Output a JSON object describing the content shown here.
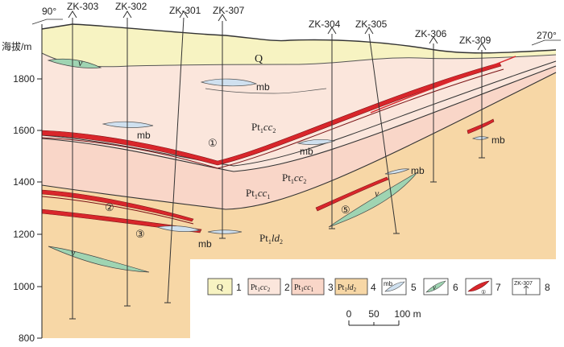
{
  "boreholes": [
    {
      "id": "ZK-303"
    },
    {
      "id": "ZK-302"
    },
    {
      "id": "ZK-301"
    },
    {
      "id": "ZK-307"
    },
    {
      "id": "ZK-304"
    },
    {
      "id": "ZK-305"
    },
    {
      "id": "ZK-306"
    },
    {
      "id": "ZK-309"
    }
  ],
  "azimuth_left": "90°",
  "azimuth_right": "270°",
  "axis": {
    "title": "海拔/m",
    "ticks": [
      "1800",
      "1600",
      "1400",
      "1200",
      "1000",
      "800"
    ]
  },
  "unit_labels": {
    "q": "Q",
    "cc2": {
      "base": "Pt",
      "sub": "1",
      "it": "cc",
      "sub2": "2"
    },
    "cc1": {
      "base": "Pt",
      "sub": "1",
      "it": "cc",
      "sub2": "1"
    },
    "ld2": {
      "base": "Pt",
      "sub": "1",
      "it": "ld",
      "sub2": "2"
    }
  },
  "mb_label": "mb",
  "v_label": "v",
  "ore_bodies": [
    "①",
    "②",
    "③",
    "⑤"
  ],
  "legend": [
    {
      "symbol": "Q",
      "num": "1",
      "color": "#f7f3c2"
    },
    {
      "symbol": "Pt1cc2",
      "num": "2",
      "color": "#fbe6dc"
    },
    {
      "symbol": "Pt1cc1",
      "num": "3",
      "color": "#f9d6c8"
    },
    {
      "symbol": "Pt1ld2",
      "num": "4",
      "color": "#f7d7a6"
    },
    {
      "symbol": "mb",
      "num": "5",
      "color": "#cfe0ef"
    },
    {
      "symbol": "v",
      "num": "6",
      "color": "#9fd4b2"
    },
    {
      "symbol": "ore",
      "num": "7",
      "color": "#d9262b"
    },
    {
      "symbol": "ZK-307",
      "num": "8",
      "color": "#000000"
    }
  ],
  "scale_bar": {
    "labels": [
      "0",
      "50",
      "100 m"
    ]
  }
}
